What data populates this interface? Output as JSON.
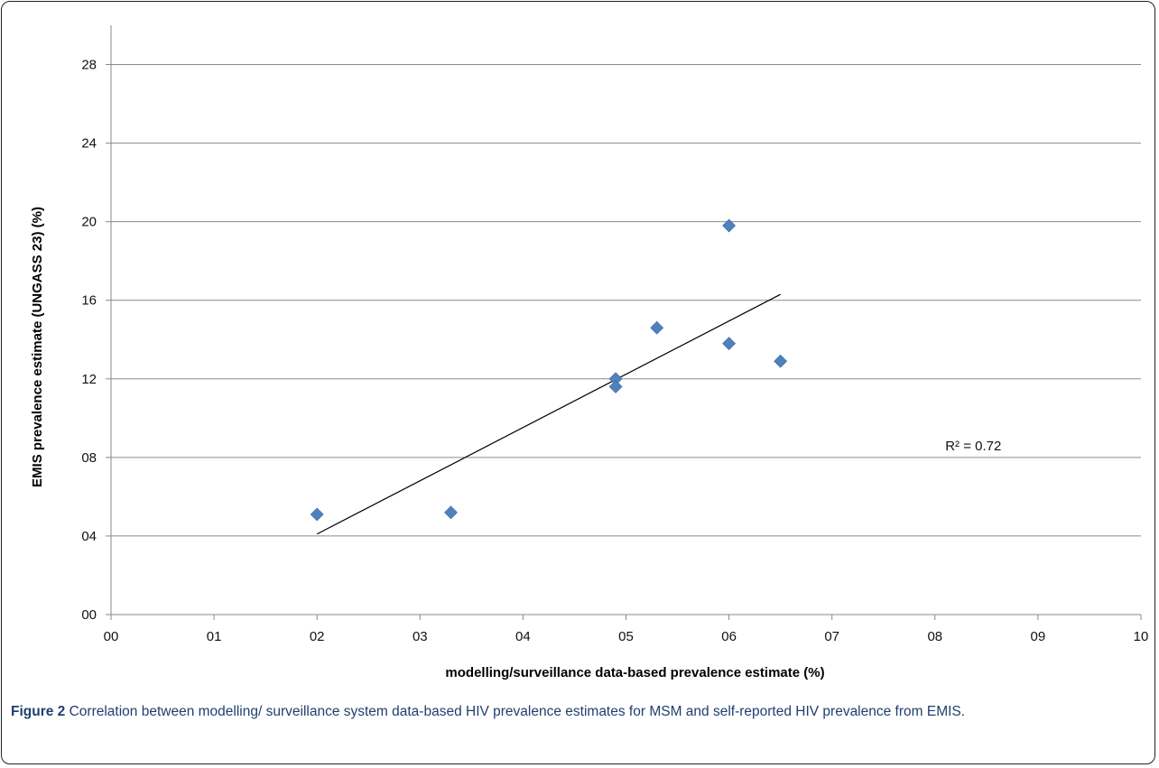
{
  "chart_data": {
    "type": "scatter",
    "xlabel": "modelling/surveillance data-based prevalence estimate  (%)",
    "ylabel": "EMIS prevalence estimate (UNGASS 23) (%)",
    "xlim": [
      0,
      10
    ],
    "ylim": [
      0,
      30
    ],
    "x_ticks": [
      0,
      1,
      2,
      3,
      4,
      5,
      6,
      7,
      8,
      9,
      10
    ],
    "x_tick_labels": [
      "00",
      "01",
      "02",
      "03",
      "04",
      "05",
      "06",
      "07",
      "08",
      "09",
      "10"
    ],
    "y_ticks": [
      0,
      4,
      8,
      12,
      16,
      20,
      24,
      28
    ],
    "y_tick_labels": [
      "00",
      "04",
      "08",
      "12",
      "16",
      "20",
      "24",
      "28"
    ],
    "grid": "horizontal",
    "marker_color": "#4f81bd",
    "points": [
      {
        "x": 2.0,
        "y": 5.1
      },
      {
        "x": 3.3,
        "y": 5.2
      },
      {
        "x": 4.9,
        "y": 12.0
      },
      {
        "x": 4.9,
        "y": 11.6
      },
      {
        "x": 5.3,
        "y": 14.6
      },
      {
        "x": 6.0,
        "y": 19.8
      },
      {
        "x": 6.0,
        "y": 13.8
      },
      {
        "x": 6.5,
        "y": 12.9
      }
    ],
    "trendline": {
      "x": [
        2.0,
        6.5
      ],
      "y": [
        4.1,
        16.3
      ]
    },
    "annotation": {
      "text": "R² = 0.72",
      "x": 8.1,
      "y": 8.6
    }
  },
  "caption": {
    "label": "Figure 2",
    "text": "Correlation between modelling/ surveillance system data-based HIV prevalence estimates for MSM and self-reported HIV prevalence from EMIS."
  }
}
